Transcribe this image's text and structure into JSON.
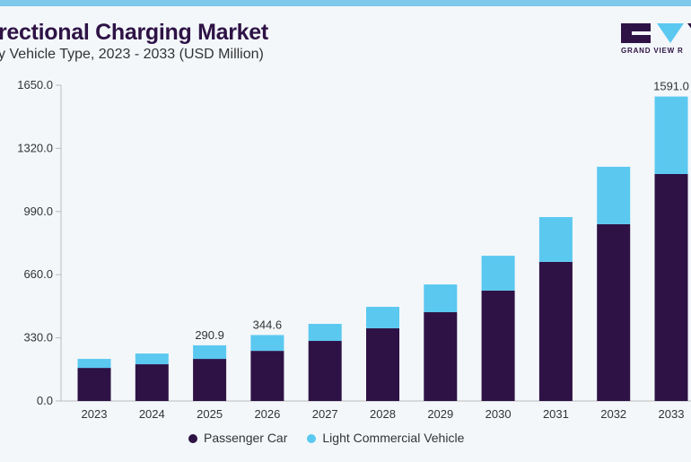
{
  "header": {
    "title": "rectional Charging Market",
    "subtitle": "y Vehicle Type, 2023 - 2033 (USD Million)",
    "logo_text": "GRAND VIEW R"
  },
  "chart_data": {
    "type": "bar",
    "stacked": true,
    "title": "rectional Charging Market",
    "subtitle": "y Vehicle Type, 2023 - 2033 (USD Million)",
    "categories": [
      "2023",
      "2024",
      "2025",
      "2026",
      "2027",
      "2028",
      "2029",
      "2030",
      "2031",
      "2032",
      "2033"
    ],
    "series": [
      {
        "name": "Passenger Car",
        "color": "#2e1245",
        "values": [
          173,
          192,
          220,
          262,
          314,
          380,
          464,
          577,
          727,
          924,
          1186
        ]
      },
      {
        "name": "Light Commercial Vehicle",
        "color": "#5bc8f0",
        "values": [
          47,
          56,
          70.9,
          82.6,
          89,
          112,
          145,
          182,
          234,
          300,
          405
        ]
      }
    ],
    "totals_labels": {
      "2025": "290.9",
      "2026": "344.6",
      "2033": "1591.0"
    },
    "yticks": [
      "0.0",
      "330.0",
      "660.0",
      "990.0",
      "1320.0",
      "1650.0"
    ],
    "ylim": [
      0,
      1650
    ],
    "grid": false,
    "legend": "bottom"
  }
}
